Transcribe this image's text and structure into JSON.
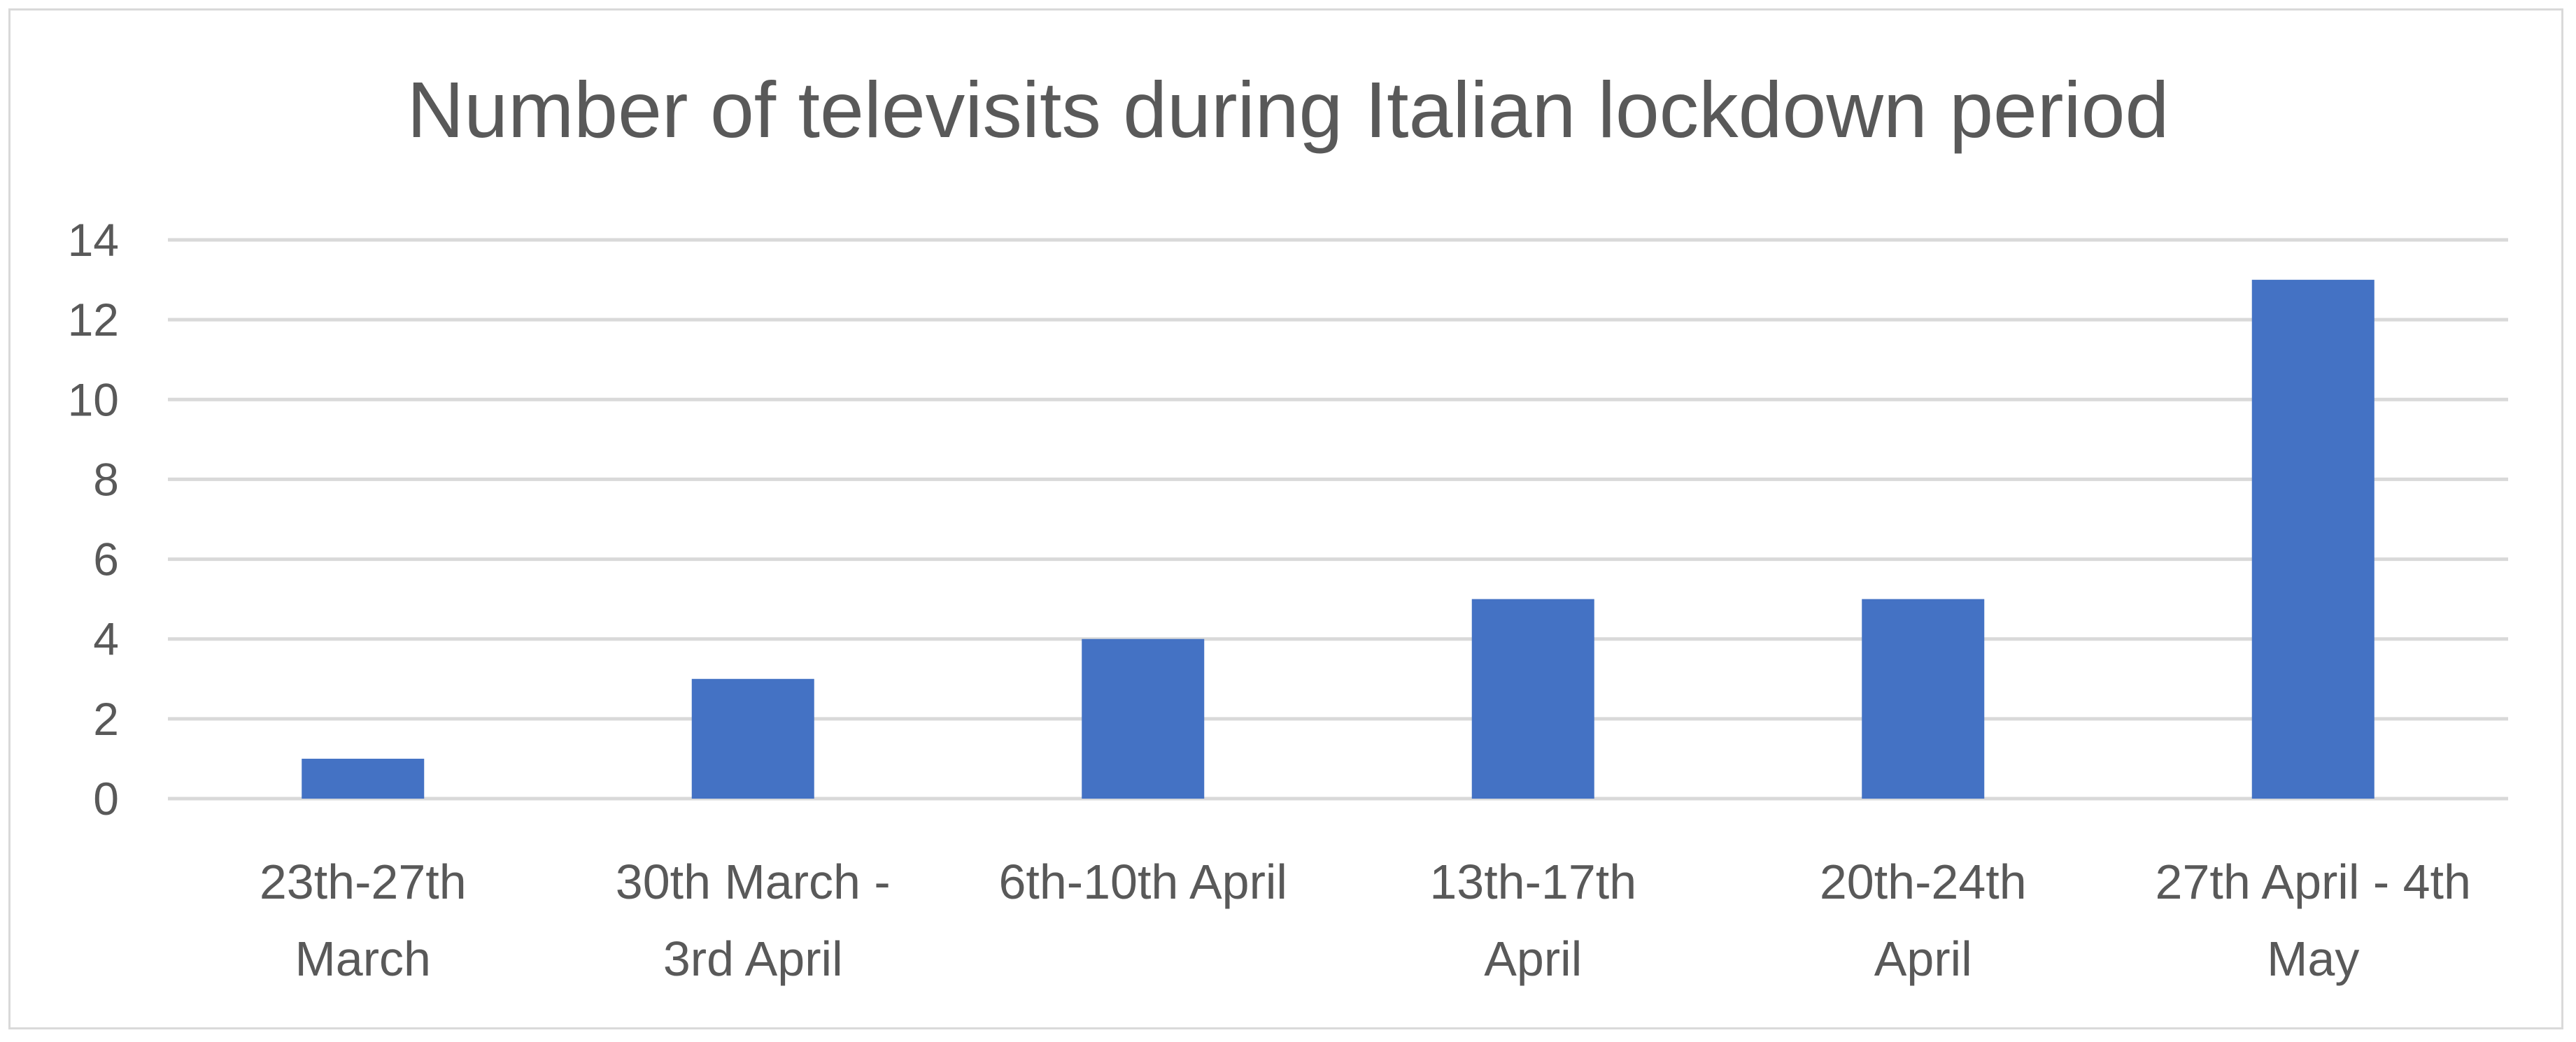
{
  "chart_data": {
    "type": "bar",
    "title": "Number of televisits during Italian lockdown period",
    "categories": [
      [
        "23th-27th",
        "March"
      ],
      [
        "30th March -",
        "3rd April"
      ],
      [
        "6th-10th April"
      ],
      [
        "13th-17th",
        "April"
      ],
      [
        "20th-24th",
        "April"
      ],
      [
        "27th April - 4th",
        "May"
      ]
    ],
    "values": [
      1,
      3,
      4,
      5,
      5,
      13
    ],
    "ylim": [
      0,
      14
    ],
    "yticks": [
      0,
      2,
      4,
      6,
      8,
      10,
      12,
      14
    ],
    "xlabel": "",
    "ylabel": "",
    "grid": true,
    "legend": "none",
    "bar_color": "#4472C4",
    "grid_color": "#d9d9d9",
    "text_color": "#595959"
  }
}
